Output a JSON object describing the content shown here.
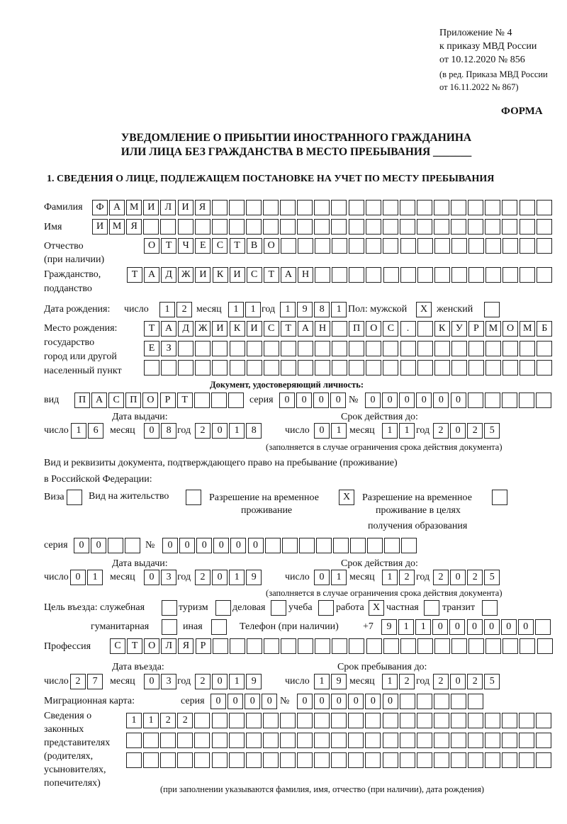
{
  "header": {
    "appendix": "Приложение № 4",
    "order": "к приказу МВД России",
    "order_date": "от 10.12.2020 № 856",
    "revision1": "(в ред. Приказа МВД России",
    "revision2": "от 16.11.2022 № 867)",
    "form": "ФОРМА",
    "title1": "УВЕДОМЛЕНИЕ О ПРИБЫТИИ ИНОСТРАННОГО ГРАЖДАНИНА",
    "title2": "ИЛИ ЛИЦА БЕЗ ГРАЖДАНСТВА В МЕСТО ПРЕБЫВАНИЯ _______",
    "section1": "1. СВЕДЕНИЯ О ЛИЦЕ, ПОДЛЕЖАЩЕМ ПОСТАНОВКЕ НА УЧЕТ ПО МЕСТУ ПРЕБЫВАНИЯ"
  },
  "labels": {
    "surname": "Фамилия",
    "name": "Имя",
    "patronymic": "Отчество",
    "patronymic2": "(при наличии)",
    "citizenship": "Гражданство,",
    "citizenship2": "подданство",
    "birth_date": "Дата рождения:",
    "day": "число",
    "month": "месяц",
    "year": "год",
    "sex": "Пол: мужской",
    "female": "женский",
    "birth_place": "Место рождения:",
    "state": "государство",
    "city": "город или другой",
    "settlement": "населенный пункт",
    "id_doc": "Документ, удостоверяющий личность:",
    "kind": "вид",
    "series": "серия",
    "number": "№",
    "issue_date": "Дата выдачи:",
    "valid_until": "Срок действия до:",
    "valid_note": "(заполняется в случае ограничения срока действия документа)",
    "right_doc1": "Вид и реквизиты документа, подтверждающего право на пребывание (проживание)",
    "right_doc2": "в Российской Федерации:",
    "visa": "Виза",
    "residence": "Вид на жительство",
    "temp1": "Разрешение на временное",
    "temp2": "проживание",
    "edu1": "Разрешение на временное",
    "edu2": "проживание в целях",
    "edu3": "получения образования",
    "purpose": "Цель въезда: служебная",
    "tourism": "туризм",
    "business": "деловая",
    "study": "учеба",
    "work": "работа",
    "private": "частная",
    "transit": "транзит",
    "humanitarian": "гуманитарная",
    "other": "иная",
    "phone": "Телефон (при наличии)",
    "phone_prefix": "+7",
    "profession": "Профессия",
    "entry_date": "Дата въезда:",
    "stay_until": "Срок пребывания до:",
    "migration_card": "Миграционная карта:",
    "reps1": "Сведения о",
    "reps2": "законных",
    "reps3": "представителях",
    "reps4": "(родителях,",
    "reps5": "усыновителях,",
    "reps6": "попечителях)",
    "reps_note": "(при заполнении указываются фамилия, имя, отчество (при наличии), дата рождения)"
  },
  "person": {
    "surname": "ФАМИЛИЯ",
    "name": "ИМЯ",
    "patronymic": "ОТЧЕСТВО",
    "citizenship": "ТАДЖИКИСТАН",
    "birth_day": "12",
    "birth_month": "11",
    "birth_year": "1981",
    "sex_male": "X",
    "sex_female": "",
    "birth_place1": "ТАДЖИКИСТАН ПОС. КУРМОМБ",
    "birth_place2": "ЕЗ",
    "birth_place3": ""
  },
  "id_document": {
    "kind": "ПАСПОРТ",
    "series": "0000",
    "number": "000000",
    "issue_day": "16",
    "issue_month": "08",
    "issue_year": "2018",
    "valid_day": "01",
    "valid_month": "11",
    "valid_year": "2025"
  },
  "right_document": {
    "visa": "",
    "residence_permit": "",
    "temp_residence": "X",
    "temp_residence_edu": "",
    "series": "00",
    "number": "000000",
    "issue_day": "01",
    "issue_month": "03",
    "issue_year": "2019",
    "valid_day": "01",
    "valid_month": "12",
    "valid_year": "2025"
  },
  "purpose": {
    "official": "",
    "tourism": "",
    "business": "",
    "study": "",
    "work": "X",
    "private": "",
    "transit": "",
    "humanitarian": "",
    "other": ""
  },
  "phone": "911000000",
  "profession": "СТОЛЯР",
  "entry": {
    "entry_day": "27",
    "entry_month": "03",
    "entry_year": "2019",
    "stay_day": "19",
    "stay_month": "12",
    "stay_year": "2025"
  },
  "migration_card": {
    "series": "0000",
    "number": "000000"
  },
  "representatives": [
    "1122",
    "",
    ""
  ]
}
